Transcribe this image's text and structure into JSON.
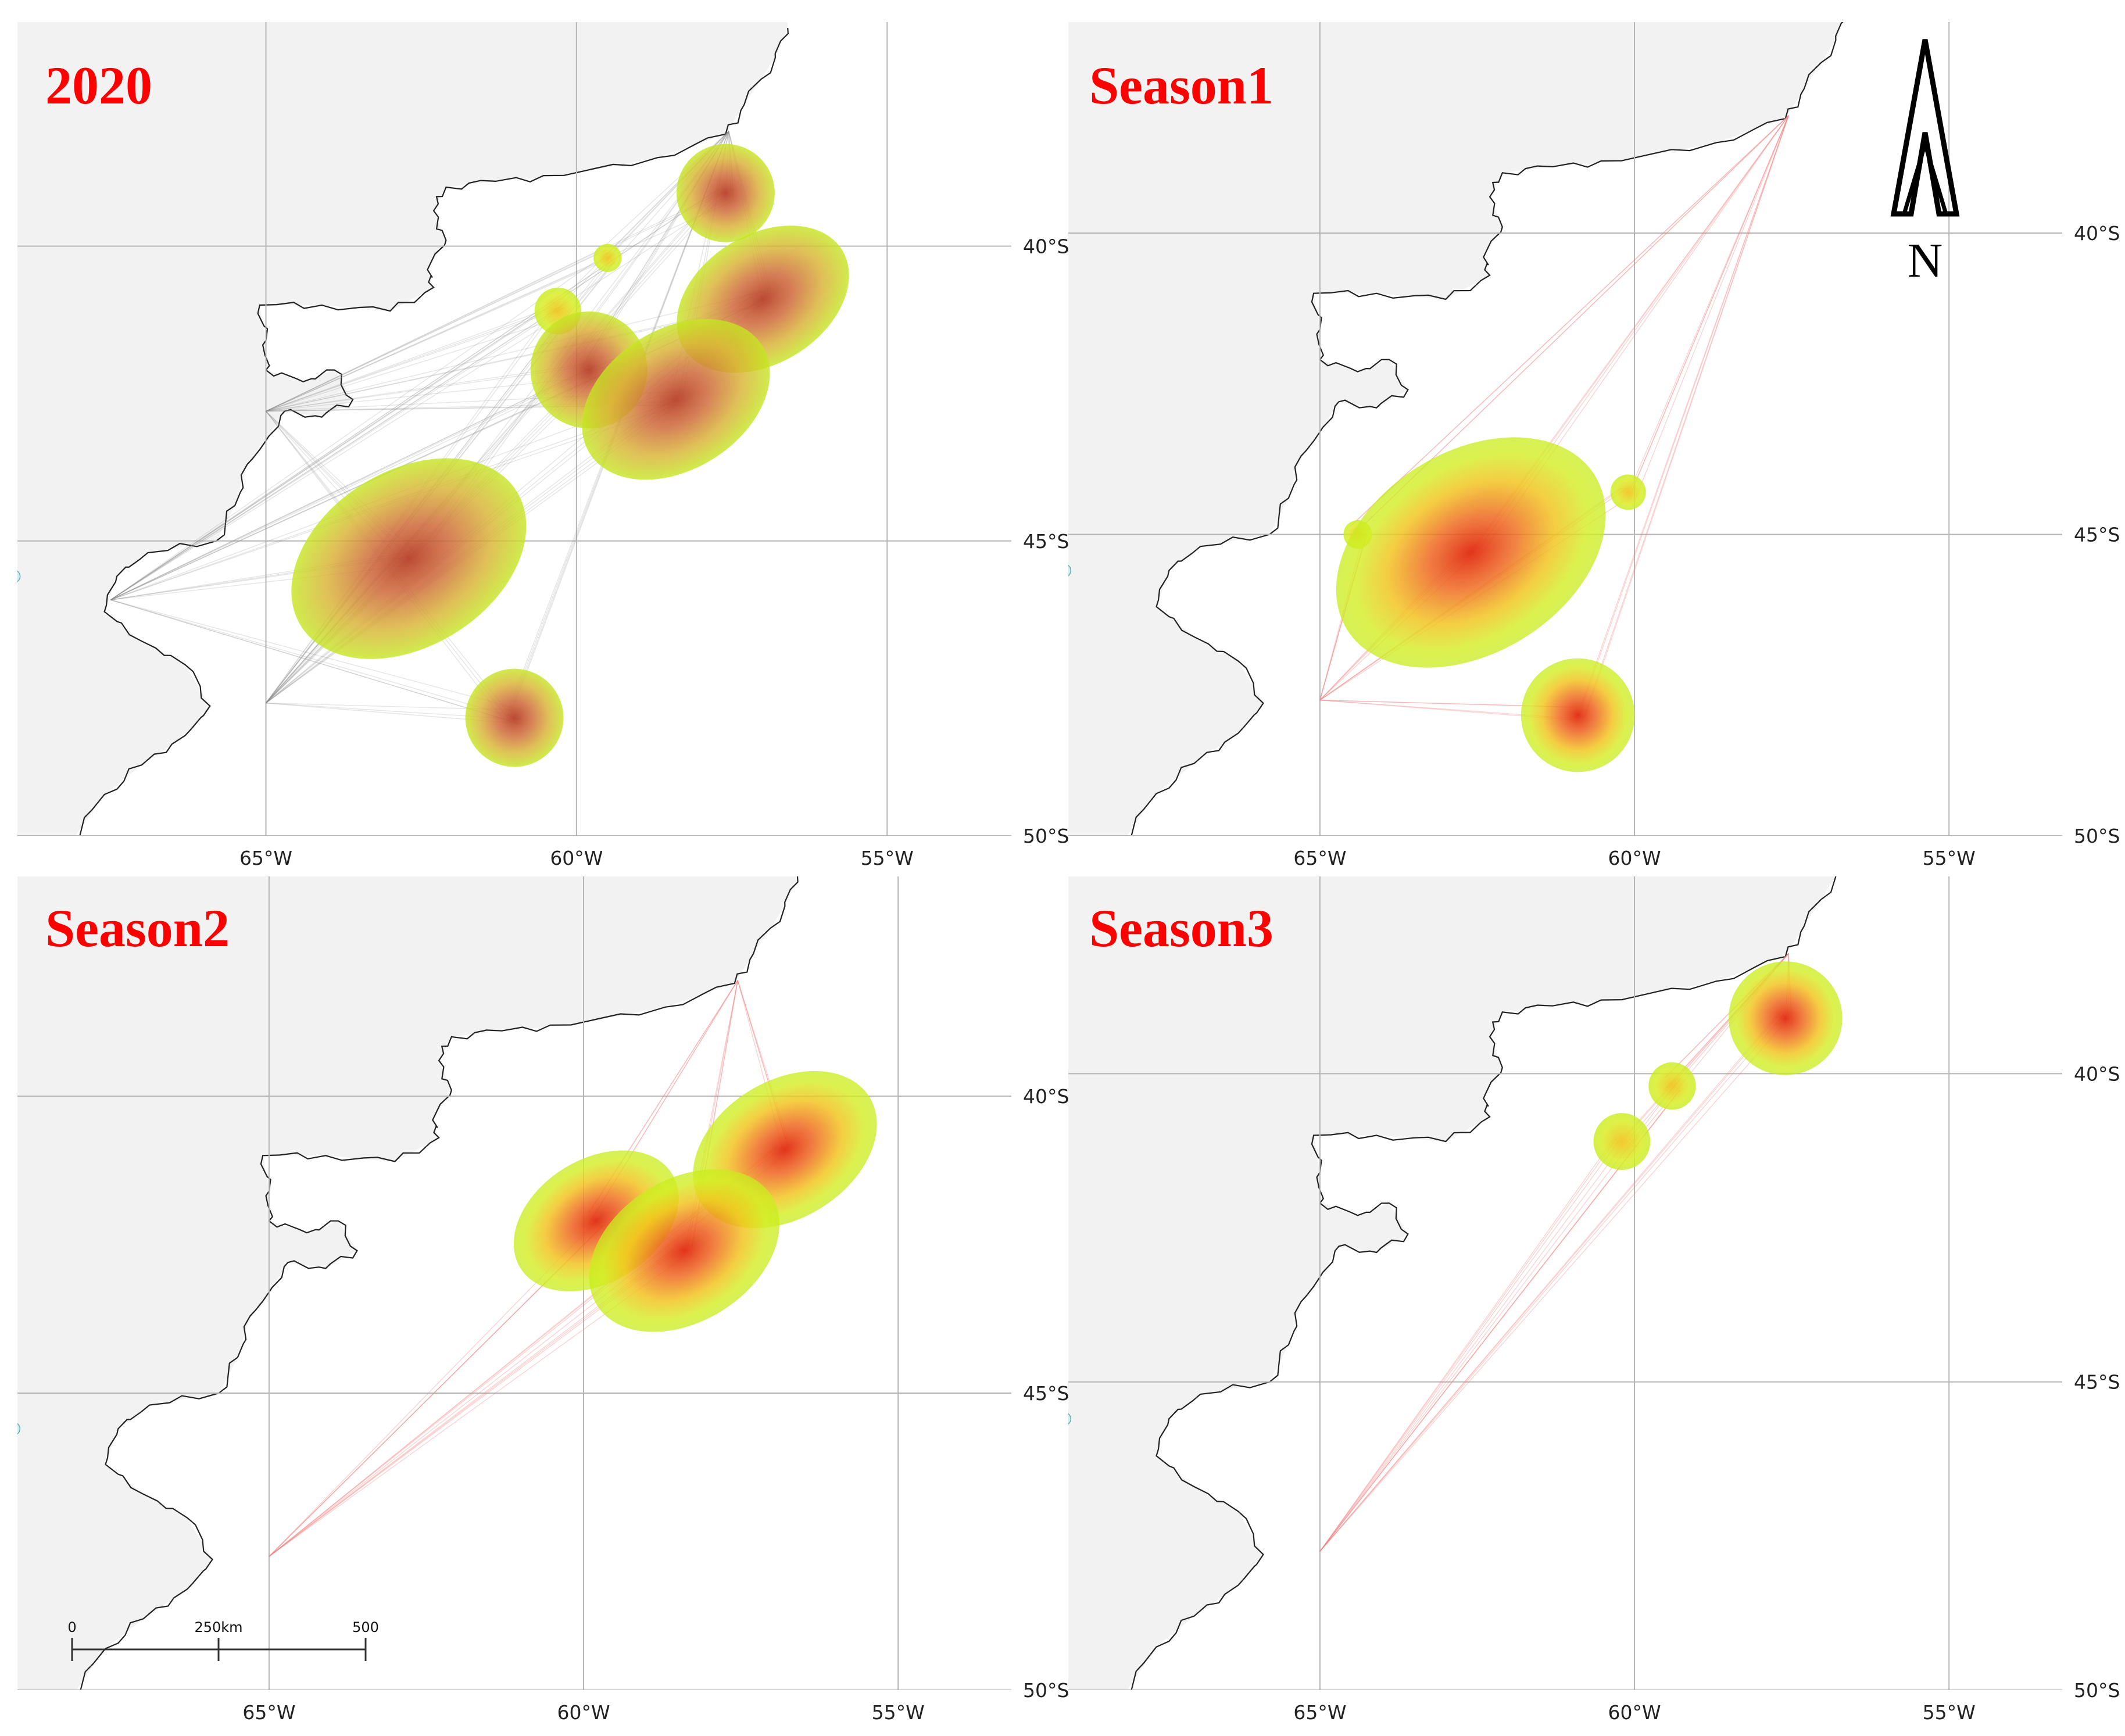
{
  "figure": {
    "colors": {
      "title": "#ff0000",
      "land": "#f2f2f2",
      "coast": "#222222",
      "grid": "#b5b5b5",
      "lake": "#cfeaf2",
      "heat_outer": "#c9ec1d",
      "heat_mid": "#f2c21a",
      "heat_core": "#e02a10",
      "tracks_annual": "#8a8a8a",
      "tracks_season": "#f08080"
    },
    "panels": [
      {
        "id": "2020",
        "title": "2020",
        "lon_labels": [
          "65°W",
          "60°W",
          "55°W"
        ],
        "lat_labels": [
          "40°S",
          "45°S",
          "50°S"
        ],
        "track_style": "gray",
        "hotspots": [
          {
            "lon": -57.6,
            "lat": -39.1,
            "radius_km": 42,
            "intensity": 0.55
          },
          {
            "lon": -59.5,
            "lat": -40.2,
            "radius_km": 12,
            "intensity": 0.1
          },
          {
            "lon": -60.3,
            "lat": -41.1,
            "radius_km": 20,
            "intensity": 0.1
          },
          {
            "lon": -57.0,
            "lat": -40.9,
            "radius_km": 55,
            "intensity": 0.85
          },
          {
            "lon": -59.8,
            "lat": -42.1,
            "radius_km": 50,
            "intensity": 0.6
          },
          {
            "lon": -58.4,
            "lat": -42.6,
            "radius_km": 60,
            "intensity": 1.0
          },
          {
            "lon": -62.7,
            "lat": -45.3,
            "radius_km": 75,
            "intensity": 0.75
          },
          {
            "lon": -61.0,
            "lat": -48.0,
            "radius_km": 42,
            "intensity": 0.8
          }
        ]
      },
      {
        "id": "season1",
        "title": "Season1",
        "lon_labels": [
          "65°W",
          "60°W",
          "55°W"
        ],
        "lat_labels": [
          "40°S",
          "45°S",
          "50°S"
        ],
        "track_style": "red",
        "hotspots": [
          {
            "lon": -60.1,
            "lat": -44.3,
            "radius_km": 15,
            "intensity": 0.15
          },
          {
            "lon": -64.4,
            "lat": -45.0,
            "radius_km": 12,
            "intensity": 0.1
          },
          {
            "lon": -62.6,
            "lat": -45.3,
            "radius_km": 85,
            "intensity": 0.8
          },
          {
            "lon": -60.9,
            "lat": -48.0,
            "radius_km": 48,
            "intensity": 0.9
          }
        ]
      },
      {
        "id": "season2",
        "title": "Season2",
        "lon_labels": [
          "65°W",
          "60°W",
          "55°W"
        ],
        "lat_labels": [
          "40°S",
          "45°S",
          "50°S"
        ],
        "track_style": "red",
        "hotspots": [
          {
            "lon": -56.8,
            "lat": -40.9,
            "radius_km": 58,
            "intensity": 0.85
          },
          {
            "lon": -59.8,
            "lat": -42.1,
            "radius_km": 52,
            "intensity": 0.55
          },
          {
            "lon": -58.4,
            "lat": -42.6,
            "radius_km": 60,
            "intensity": 1.0
          }
        ]
      },
      {
        "id": "season3",
        "title": "Season3",
        "lon_labels": [
          "65°W",
          "60°W",
          "55°W"
        ],
        "lat_labels": [
          "40°S",
          "45°S",
          "50°S"
        ],
        "track_style": "red",
        "hotspots": [
          {
            "lon": -57.6,
            "lat": -39.1,
            "radius_km": 48,
            "intensity": 1.0
          },
          {
            "lon": -59.4,
            "lat": -40.2,
            "radius_km": 20,
            "intensity": 0.2
          },
          {
            "lon": -60.2,
            "lat": -41.1,
            "radius_km": 24,
            "intensity": 0.25
          }
        ]
      }
    ],
    "north_arrow": {
      "label": "N"
    },
    "scale_bar": {
      "labels": [
        "0",
        "250km",
        "500"
      ]
    }
  }
}
